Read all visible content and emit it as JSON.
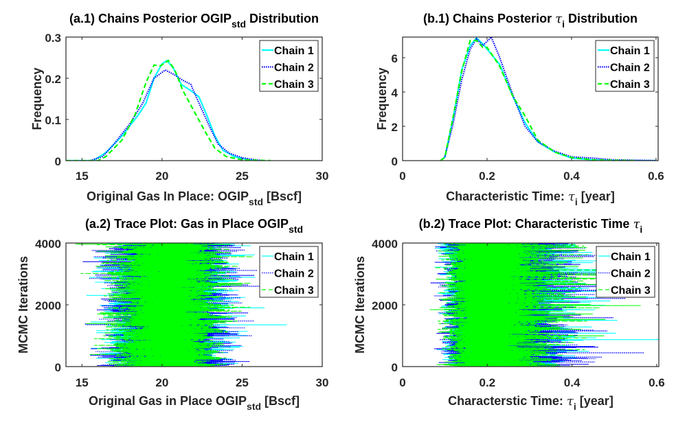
{
  "chart_data": [
    {
      "type": "line",
      "panel": "a1",
      "title": [
        {
          "t": "(a.1) Chains Posterior OGIP"
        },
        {
          "t": "std",
          "sub": true
        },
        {
          "t": " Distribution"
        }
      ],
      "xlabel": [
        {
          "t": "Original Gas In Place: OGIP"
        },
        {
          "t": "std",
          "sub": true
        },
        {
          "t": " [Bscf]"
        }
      ],
      "ylabel": "Frequency",
      "xlim": [
        14,
        30
      ],
      "ylim": [
        0,
        0.3
      ],
      "xticks": [
        15,
        20,
        25,
        30
      ],
      "xtick_labels": [
        "15",
        "20",
        "25",
        "30"
      ],
      "yticks": [
        0,
        0.1,
        0.2,
        0.3
      ],
      "ytick_labels": [
        "0",
        "0.1",
        "0.2",
        "0.3"
      ],
      "legend_position": "top-right",
      "series": [
        {
          "name": "Chain 1",
          "color": "#00FFFF",
          "style": "solid",
          "x": [
            14,
            15.7,
            16.5,
            17.5,
            18.5,
            19,
            19.5,
            20,
            20.3,
            20.7,
            21.2,
            21.8,
            22.3,
            22.8,
            23.3,
            23.8,
            24.5,
            25.5,
            26
          ],
          "y": [
            0,
            0,
            0.02,
            0.06,
            0.11,
            0.14,
            0.2,
            0.235,
            0.243,
            0.225,
            0.185,
            0.17,
            0.155,
            0.11,
            0.06,
            0.025,
            0.01,
            0.001,
            0
          ]
        },
        {
          "name": "Chain 2",
          "color": "#0000FF",
          "style": "dotted",
          "x": [
            15.5,
            16.3,
            17,
            18,
            18.8,
            19.5,
            20.2,
            20.7,
            21.3,
            21.8,
            22.3,
            23,
            23.5,
            24.2,
            25,
            26,
            26.4
          ],
          "y": [
            0,
            0.01,
            0.04,
            0.09,
            0.14,
            0.2,
            0.22,
            0.21,
            0.195,
            0.185,
            0.14,
            0.08,
            0.04,
            0.018,
            0.007,
            0.001,
            0
          ]
        },
        {
          "name": "Chain 3",
          "color": "#00FF00",
          "style": "dashed",
          "x": [
            14,
            16,
            16.5,
            17.5,
            18.3,
            19,
            19.5,
            19.9,
            20.4,
            20.8,
            21.3,
            22,
            22.7,
            23.3,
            24,
            25,
            26.8
          ],
          "y": [
            0,
            0,
            0.01,
            0.05,
            0.11,
            0.19,
            0.232,
            0.23,
            0.243,
            0.22,
            0.17,
            0.12,
            0.07,
            0.03,
            0.01,
            0.002,
            0
          ]
        }
      ]
    },
    {
      "type": "line",
      "panel": "b1",
      "title": [
        {
          "t": "(b.1) Chains Posterior "
        },
        {
          "t": "τ",
          "italic": true
        },
        {
          "t": "i",
          "sub": true
        },
        {
          "t": " Distribution"
        }
      ],
      "xlabel": [
        {
          "t": "Characteristic Time: "
        },
        {
          "t": "τ",
          "italic": true
        },
        {
          "t": "i",
          "sub": true
        },
        {
          "t": " [year]"
        }
      ],
      "ylabel": "Frequency",
      "xlim": [
        0,
        0.605
      ],
      "ylim": [
        0,
        7.2
      ],
      "xticks": [
        0,
        0.2,
        0.4,
        0.6
      ],
      "xtick_labels": [
        "0",
        "0.2",
        "0.4",
        "0.6"
      ],
      "yticks": [
        0,
        2,
        4,
        6
      ],
      "ytick_labels": [
        "0",
        "2",
        "4",
        "6"
      ],
      "legend_position": "top-right",
      "series": [
        {
          "name": "Chain 1",
          "color": "#00FFFF",
          "style": "solid",
          "x": [
            0.09,
            0.1,
            0.12,
            0.14,
            0.16,
            0.175,
            0.19,
            0.21,
            0.23,
            0.26,
            0.29,
            0.32,
            0.36,
            0.4,
            0.45,
            0.5,
            0.6
          ],
          "y": [
            0,
            0.2,
            2.5,
            5.3,
            6.7,
            7.15,
            6.8,
            6.2,
            5.6,
            3.8,
            2.2,
            1.1,
            0.5,
            0.15,
            0.05,
            0,
            0
          ]
        },
        {
          "name": "Chain 2",
          "color": "#0000FF",
          "style": "dotted",
          "x": [
            0.09,
            0.1,
            0.12,
            0.14,
            0.16,
            0.175,
            0.19,
            0.21,
            0.23,
            0.26,
            0.29,
            0.32,
            0.36,
            0.4,
            0.45,
            0.5,
            0.6
          ],
          "y": [
            0,
            0.2,
            2.2,
            4.7,
            6.5,
            7.1,
            6.7,
            7.2,
            6.0,
            3.9,
            2.0,
            1.1,
            0.55,
            0.22,
            0.15,
            0.05,
            0
          ]
        },
        {
          "name": "Chain 3",
          "color": "#00FF00",
          "style": "dashed",
          "x": [
            0.09,
            0.1,
            0.12,
            0.14,
            0.16,
            0.175,
            0.19,
            0.2,
            0.23,
            0.26,
            0.29,
            0.32,
            0.36,
            0.4,
            0.45,
            0.55
          ],
          "y": [
            0,
            0.2,
            2.6,
            5.2,
            7.0,
            7.0,
            6.6,
            6.6,
            5.5,
            3.8,
            2.6,
            1.2,
            0.5,
            0.18,
            0.05,
            0
          ]
        }
      ]
    },
    {
      "type": "trace",
      "panel": "a2",
      "title": [
        {
          "t": "(a.2) Trace Plot: Gas in Place OGIP"
        },
        {
          "t": "std",
          "sub": true
        }
      ],
      "xlabel": [
        {
          "t": "Original Gas in Place OGIP"
        },
        {
          "t": "std",
          "sub": true
        },
        {
          "t": " [Bscf]"
        }
      ],
      "ylabel": "MCMC Iterations",
      "xlim": [
        14,
        30
      ],
      "ylim": [
        0,
        4000
      ],
      "xticks": [
        15,
        20,
        25,
        30
      ],
      "xtick_labels": [
        "15",
        "20",
        "25",
        "30"
      ],
      "yticks": [
        0,
        2000,
        4000
      ],
      "ytick_labels": [
        "0",
        "2000",
        "4000"
      ],
      "legend_position": "top-right",
      "iterations": 4000,
      "series": [
        {
          "name": "Chain 1",
          "color": "#00FFFF",
          "style": "solid",
          "mean": 20.4,
          "std": 1.6,
          "dist": "normal",
          "seed": 11
        },
        {
          "name": "Chain 2",
          "color": "#0000FF",
          "style": "dotted",
          "mean": 20.4,
          "std": 1.65,
          "dist": "normal",
          "seed": 23
        },
        {
          "name": "Chain 3",
          "color": "#00FF00",
          "style": "dashed",
          "mean": 20.3,
          "std": 1.55,
          "dist": "normal",
          "seed": 37
        }
      ]
    },
    {
      "type": "trace",
      "panel": "b2",
      "title": [
        {
          "t": "(b.2) Trace Plot: Characteristic Time "
        },
        {
          "t": "τ",
          "italic": true
        },
        {
          "t": "i",
          "sub": true
        }
      ],
      "xlabel": [
        {
          "t": "Characterstic Time: "
        },
        {
          "t": "τ",
          "italic": true
        },
        {
          "t": "i",
          "sub": true
        },
        {
          "t": " [year]"
        }
      ],
      "ylabel": "MCMC Iterations",
      "xlim": [
        0,
        0.605
      ],
      "ylim": [
        0,
        4000
      ],
      "xticks": [
        0,
        0.2,
        0.4,
        0.6
      ],
      "xtick_labels": [
        "0",
        "0.2",
        "0.4",
        "0.6"
      ],
      "yticks": [
        0,
        2000,
        4000
      ],
      "ytick_labels": [
        "0",
        "2000",
        "4000"
      ],
      "legend_position": "top-right",
      "iterations": 4000,
      "series": [
        {
          "name": "Chain 1",
          "color": "#00FFFF",
          "style": "solid",
          "median": 0.2,
          "log_std": 0.3,
          "dist": "lognormal",
          "seed": 51
        },
        {
          "name": "Chain 2",
          "color": "#0000FF",
          "style": "dotted",
          "median": 0.205,
          "log_std": 0.3,
          "dist": "lognormal",
          "seed": 67
        },
        {
          "name": "Chain 3",
          "color": "#00FF00",
          "style": "dashed",
          "median": 0.2,
          "log_std": 0.29,
          "dist": "lognormal",
          "seed": 79
        }
      ]
    }
  ]
}
